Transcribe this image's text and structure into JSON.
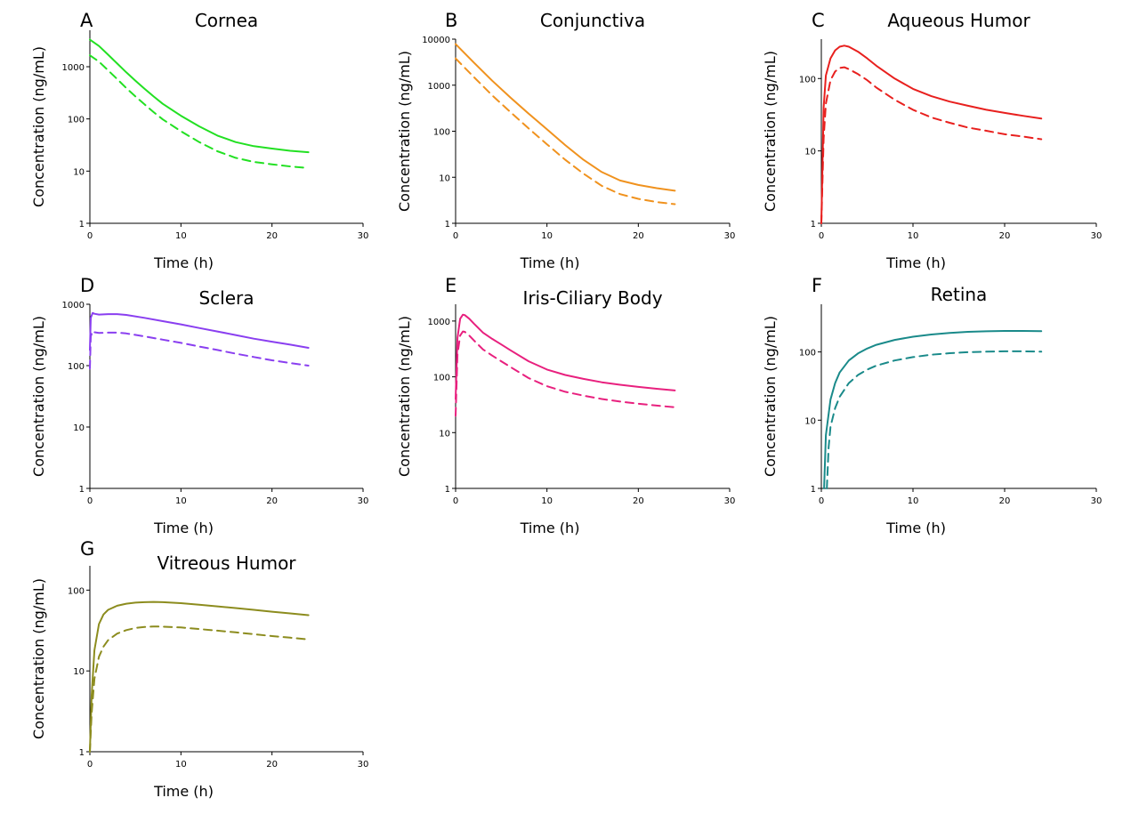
{
  "figure": {
    "x_label": "Time (h)",
    "y_label": "Concentration (ng/mL)"
  },
  "chart_data": [
    {
      "type": "line",
      "panel": "A",
      "title": "Cornea",
      "xlabel": "Time (h)",
      "ylabel": "Concentration (ng/mL)",
      "xlim": [
        0,
        30
      ],
      "xticks": [
        0,
        10,
        20,
        30
      ],
      "yscale": "log",
      "ylim": [
        1,
        5000
      ],
      "yticks": [
        1,
        10,
        100,
        1000
      ],
      "color": "#22e022",
      "series": [
        {
          "name": "solid",
          "style": "solid",
          "x": [
            0,
            1,
            2,
            3,
            4,
            5,
            6,
            7,
            8,
            10,
            12,
            14,
            16,
            18,
            20,
            22,
            24
          ],
          "y": [
            3300,
            2500,
            1700,
            1150,
            780,
            540,
            380,
            270,
            195,
            115,
            72,
            48,
            36,
            30,
            27,
            24.5,
            23
          ]
        },
        {
          "name": "dashed",
          "style": "dashed",
          "x": [
            0,
            1,
            2,
            3,
            4,
            5,
            6,
            7,
            8,
            10,
            12,
            14,
            16,
            18,
            20,
            22,
            24
          ],
          "y": [
            1650,
            1250,
            850,
            580,
            390,
            270,
            190,
            135,
            98,
            58,
            36,
            24,
            18,
            15,
            13.5,
            12.3,
            11.5
          ]
        }
      ]
    },
    {
      "type": "line",
      "panel": "B",
      "title": "Conjunctiva",
      "xlabel": "Time (h)",
      "ylabel": "Concentration (ng/mL)",
      "xlim": [
        0,
        30
      ],
      "xticks": [
        0,
        10,
        20,
        30
      ],
      "yscale": "log",
      "ylim": [
        1,
        10000
      ],
      "yticks": [
        1,
        10,
        100,
        1000,
        10000
      ],
      "color": "#f0921e",
      "series": [
        {
          "name": "solid",
          "style": "solid",
          "x": [
            0,
            2,
            4,
            6,
            8,
            10,
            12,
            14,
            16,
            18,
            20,
            22,
            24
          ],
          "y": [
            7800,
            3100,
            1250,
            540,
            240,
            110,
            50,
            24,
            13,
            8.5,
            6.8,
            5.8,
            5.1
          ]
        },
        {
          "name": "dashed",
          "style": "dashed",
          "x": [
            0,
            2,
            4,
            6,
            8,
            10,
            12,
            14,
            16,
            18,
            20,
            22,
            24
          ],
          "y": [
            3800,
            1500,
            600,
            260,
            115,
            52,
            24,
            12,
            6.5,
            4.3,
            3.4,
            2.9,
            2.6
          ]
        }
      ]
    },
    {
      "type": "line",
      "panel": "C",
      "title": "Aqueous Humor",
      "xlabel": "Time (h)",
      "ylabel": "Concentration (ng/mL)",
      "xlim": [
        0,
        30
      ],
      "xticks": [
        0,
        10,
        20,
        30
      ],
      "yscale": "log",
      "ylim": [
        1,
        350
      ],
      "yticks": [
        1,
        10,
        100
      ],
      "color": "#e8201e",
      "series": [
        {
          "name": "solid",
          "style": "solid",
          "x": [
            0,
            0.25,
            0.5,
            1,
            1.5,
            2,
            2.5,
            3,
            4,
            5,
            6,
            8,
            10,
            12,
            14,
            16,
            18,
            20,
            22,
            24
          ],
          "y": [
            1,
            40,
            110,
            190,
            245,
            275,
            285,
            275,
            235,
            190,
            150,
            100,
            72,
            57,
            48,
            42,
            37,
            33.5,
            30.5,
            28
          ]
        },
        {
          "name": "dashed",
          "style": "dashed",
          "x": [
            0,
            0.25,
            0.5,
            1,
            1.5,
            2,
            2.5,
            3,
            4,
            5,
            6,
            8,
            10,
            12,
            14,
            16,
            18,
            20,
            22,
            24
          ],
          "y": [
            1,
            15,
            45,
            95,
            125,
            140,
            143,
            135,
            115,
            95,
            75,
            51,
            37,
            29,
            24.5,
            21,
            19,
            17,
            15.8,
            14.5
          ]
        }
      ]
    },
    {
      "type": "line",
      "panel": "D",
      "title": "Sclera",
      "xlabel": "Time (h)",
      "ylabel": "Concentration (ng/mL)",
      "xlim": [
        0,
        30
      ],
      "xticks": [
        0,
        10,
        20,
        30
      ],
      "yscale": "log",
      "ylim": [
        1,
        1000
      ],
      "yticks": [
        1,
        10,
        100,
        1000
      ],
      "color": "#8a3ff0",
      "series": [
        {
          "name": "solid",
          "style": "solid",
          "x": [
            0,
            0.1,
            0.3,
            0.5,
            1,
            2,
            3,
            4,
            6,
            8,
            10,
            12,
            14,
            16,
            18,
            20,
            22,
            24
          ],
          "y": [
            180,
            600,
            720,
            700,
            680,
            690,
            690,
            670,
            600,
            530,
            470,
            410,
            360,
            315,
            275,
            245,
            220,
            195
          ]
        },
        {
          "name": "dashed",
          "style": "dashed",
          "x": [
            0,
            0.1,
            0.3,
            0.5,
            1,
            2,
            3,
            4,
            6,
            8,
            10,
            12,
            14,
            16,
            18,
            20,
            22,
            24
          ],
          "y": [
            90,
            300,
            365,
            350,
            340,
            345,
            345,
            335,
            300,
            265,
            235,
            205,
            180,
            157,
            138,
            122,
            110,
            100
          ]
        }
      ]
    },
    {
      "type": "line",
      "panel": "E",
      "title": "Iris-Ciliary Body",
      "xlabel": "Time (h)",
      "ylabel": "Concentration (ng/mL)",
      "xlim": [
        0,
        30
      ],
      "xticks": [
        0,
        10,
        20,
        30
      ],
      "yscale": "log",
      "ylim": [
        1,
        2000
      ],
      "yticks": [
        1,
        10,
        100,
        1000
      ],
      "color": "#e8207e",
      "series": [
        {
          "name": "solid",
          "style": "solid",
          "x": [
            0,
            0.2,
            0.5,
            0.8,
            1,
            1.5,
            2,
            3,
            4,
            5,
            6,
            8,
            10,
            12,
            14,
            16,
            18,
            20,
            22,
            24
          ],
          "y": [
            40,
            500,
            1100,
            1300,
            1280,
            1100,
            900,
            620,
            480,
            380,
            300,
            190,
            135,
            108,
            92,
            80,
            72,
            66,
            61,
            57
          ]
        },
        {
          "name": "dashed",
          "style": "dashed",
          "x": [
            0,
            0.2,
            0.5,
            0.8,
            1,
            1.5,
            2,
            3,
            4,
            5,
            6,
            8,
            10,
            12,
            14,
            16,
            18,
            20,
            22,
            24
          ],
          "y": [
            20,
            250,
            550,
            650,
            640,
            550,
            450,
            310,
            240,
            190,
            150,
            95,
            68,
            54,
            46,
            40,
            36,
            33,
            30.5,
            28.5
          ]
        }
      ]
    },
    {
      "type": "line",
      "panel": "F",
      "title": "Retina",
      "xlabel": "Time (h)",
      "ylabel": "Concentration (ng/mL)",
      "xlim": [
        0,
        30
      ],
      "xticks": [
        0,
        10,
        20,
        30
      ],
      "yscale": "log",
      "ylim": [
        1,
        500
      ],
      "yticks": [
        1,
        10,
        100
      ],
      "color": "#1a8a8a",
      "series": [
        {
          "name": "solid",
          "style": "solid",
          "x": [
            0.3,
            0.5,
            1,
            1.5,
            2,
            3,
            4,
            5,
            6,
            8,
            10,
            12,
            14,
            16,
            18,
            20,
            22,
            24
          ],
          "y": [
            1,
            6,
            20,
            35,
            50,
            75,
            95,
            112,
            127,
            150,
            167,
            180,
            190,
            197,
            201,
            203,
            203,
            202
          ]
        },
        {
          "name": "dashed",
          "style": "dashed",
          "x": [
            0.6,
            0.8,
            1,
            1.5,
            2,
            3,
            4,
            5,
            6,
            8,
            10,
            12,
            14,
            16,
            18,
            20,
            22,
            24
          ],
          "y": [
            1,
            4,
            8,
            15,
            22,
            35,
            46,
            55,
            63,
            75,
            84,
            91,
            96,
            99,
            101,
            102,
            102,
            101
          ]
        }
      ]
    },
    {
      "type": "line",
      "panel": "G",
      "title": "Vitreous Humor",
      "xlabel": "Time (h)",
      "ylabel": "Concentration (ng/mL)",
      "xlim": [
        0,
        30
      ],
      "xticks": [
        0,
        10,
        20,
        30
      ],
      "yscale": "log",
      "ylim": [
        1,
        200
      ],
      "yticks": [
        1,
        10,
        100
      ],
      "color": "#8c8c1e",
      "series": [
        {
          "name": "solid",
          "style": "solid",
          "x": [
            0,
            0.2,
            0.5,
            1,
            1.5,
            2,
            3,
            4,
            5,
            6,
            7,
            8,
            10,
            12,
            14,
            16,
            18,
            20,
            22,
            24
          ],
          "y": [
            1,
            5,
            18,
            38,
            50,
            57,
            64,
            68,
            70,
            71,
            71.5,
            71,
            69,
            66,
            63,
            60,
            57,
            54,
            51.5,
            49
          ]
        },
        {
          "name": "dashed",
          "style": "dashed",
          "x": [
            0,
            0.2,
            0.5,
            1,
            1.5,
            2,
            3,
            4,
            5,
            6,
            7,
            8,
            10,
            12,
            14,
            16,
            18,
            20,
            22,
            24
          ],
          "y": [
            1,
            3,
            8,
            15,
            20,
            24,
            29,
            32,
            34,
            35,
            35.5,
            35.3,
            34.5,
            33,
            31.5,
            30,
            28.5,
            27,
            25.8,
            24.5
          ]
        }
      ]
    }
  ]
}
